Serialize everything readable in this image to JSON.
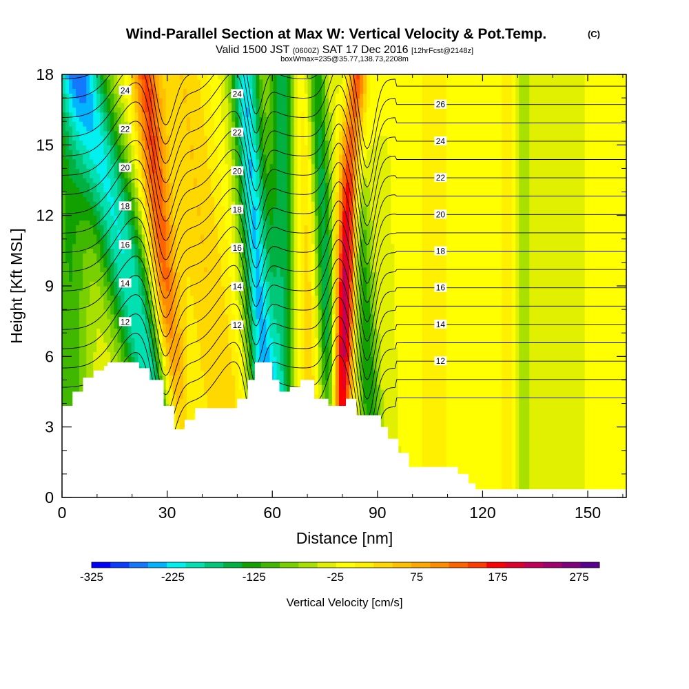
{
  "title": {
    "main": "Wind-Parallel Section at Max W: Vertical Velocity & Pot.Temp.",
    "copyright": "(C)",
    "valid_prefix": "Valid 1500 JST",
    "valid_utc": "(0600Z)",
    "valid_date": "SAT 17 Dec 2016",
    "forecast": "[12hrFcst@2148z]",
    "box_info": "boxWmax=235@35.77,138.73,2208m"
  },
  "chart_data": {
    "type": "heatmap",
    "xlabel": "Distance [nm]",
    "ylabel": "Height [Kft MSL]",
    "xlim": [
      0,
      161
    ],
    "ylim": [
      0,
      18
    ],
    "x_major_ticks": [
      0,
      30,
      60,
      90,
      120,
      150
    ],
    "x_tick_labels": [
      "0",
      "30",
      "60",
      "90",
      "120",
      "150"
    ],
    "y_major_ticks": [
      0,
      3,
      6,
      9,
      12,
      15,
      18
    ],
    "y_tick_labels": [
      "0",
      "3",
      "6",
      "9",
      "12",
      "15",
      "18"
    ],
    "colorbar": {
      "title": "Vertical Velocity [cm/s]",
      "min": -325,
      "max": 300,
      "step": 25,
      "tick_labels": [
        "-325",
        "-225",
        "-125",
        "-25",
        "75",
        "175",
        "275"
      ],
      "colors": [
        "#0000ff",
        "#0a3cff",
        "#1478ff",
        "#00b4ff",
        "#00f0f0",
        "#00e0b0",
        "#00c878",
        "#00b040",
        "#10a000",
        "#40b800",
        "#78d000",
        "#a8e000",
        "#e0f000",
        "#ffff00",
        "#fff000",
        "#ffd800",
        "#ffc000",
        "#ffa800",
        "#ff8c00",
        "#ff6400",
        "#ff3c00",
        "#ff0000",
        "#e0002c",
        "#c00058",
        "#a00070",
        "#800080",
        "#5a0090"
      ]
    },
    "vertical_velocity_features": [
      {
        "x_center": 2,
        "w_peak": -100,
        "x_width": 6,
        "tilt_nm_per_kft": 0
      },
      {
        "x_center": 24,
        "w_peak": -200,
        "x_width": 7,
        "tilt_nm_per_kft": -1.5
      },
      {
        "x_center": 31,
        "w_peak": 175,
        "x_width": 4,
        "tilt_nm_per_kft": -0.6
      },
      {
        "x_center": 44,
        "w_peak": 75,
        "x_width": 7,
        "tilt_nm_per_kft": -0.8
      },
      {
        "x_center": 57,
        "w_peak": -225,
        "x_width": 4,
        "tilt_nm_per_kft": -0.4
      },
      {
        "x_center": 63,
        "w_peak": -150,
        "x_width": 4,
        "tilt_nm_per_kft": 0
      },
      {
        "x_center": 70,
        "w_peak": 75,
        "x_width": 5,
        "tilt_nm_per_kft": 0
      },
      {
        "x_center": 76,
        "w_peak": -175,
        "x_width": 3,
        "tilt_nm_per_kft": -0.3
      },
      {
        "x_center": 80,
        "w_peak": 275,
        "x_width": 3,
        "tilt_nm_per_kft": 0.3
      },
      {
        "x_center": 87,
        "w_peak": -125,
        "x_width": 3,
        "tilt_nm_per_kft": -0.4
      },
      {
        "x_center": 106,
        "w_peak": 50,
        "x_width": 4,
        "tilt_nm_per_kft": 0
      },
      {
        "x_center": 131,
        "w_peak": -50,
        "x_width": 3,
        "tilt_nm_per_kft": 0
      },
      {
        "x_center": 128,
        "w_peak": 50,
        "x_width": 3,
        "tilt_nm_per_kft": 0
      }
    ],
    "terrain": {
      "x": [
        0,
        3,
        3,
        6,
        6,
        9,
        9,
        12,
        12,
        13,
        13,
        22,
        22,
        25,
        25,
        29,
        29,
        32,
        32,
        35,
        35,
        38,
        38,
        50,
        50,
        53,
        53,
        55,
        55,
        60,
        60,
        62,
        62,
        65,
        65,
        68,
        68,
        72,
        72,
        76,
        76,
        81,
        81,
        84,
        84,
        91,
        91,
        93,
        93,
        96,
        96,
        99,
        99,
        113,
        113,
        116,
        116,
        118,
        118,
        162
      ],
      "height_kft": [
        3.9,
        3.9,
        4.5,
        4.5,
        5.1,
        5.1,
        5.4,
        5.4,
        5.6,
        5.6,
        5.75,
        5.75,
        5.5,
        5.5,
        5.0,
        5.0,
        3.9,
        3.9,
        2.9,
        2.9,
        3.3,
        3.3,
        3.8,
        3.8,
        4.2,
        4.2,
        5.0,
        5.0,
        5.75,
        5.75,
        5.0,
        5.0,
        4.5,
        4.5,
        4.7,
        4.7,
        5.0,
        5.0,
        4.2,
        4.2,
        3.9,
        3.9,
        4.2,
        4.2,
        3.5,
        3.5,
        3.0,
        3.0,
        2.5,
        2.5,
        1.9,
        1.9,
        1.3,
        1.3,
        1.0,
        1.0,
        0.6,
        0.6,
        0.35,
        0.35
      ]
    },
    "potential_temperature_contours": {
      "levels": [
        10,
        11,
        12,
        13,
        14,
        15,
        16,
        17,
        18,
        19,
        20,
        21,
        22,
        23,
        24,
        25,
        26,
        27
      ],
      "labeled_levels": [
        "12",
        "14",
        "16",
        "18",
        "20",
        "22",
        "24",
        "26"
      ]
    }
  }
}
